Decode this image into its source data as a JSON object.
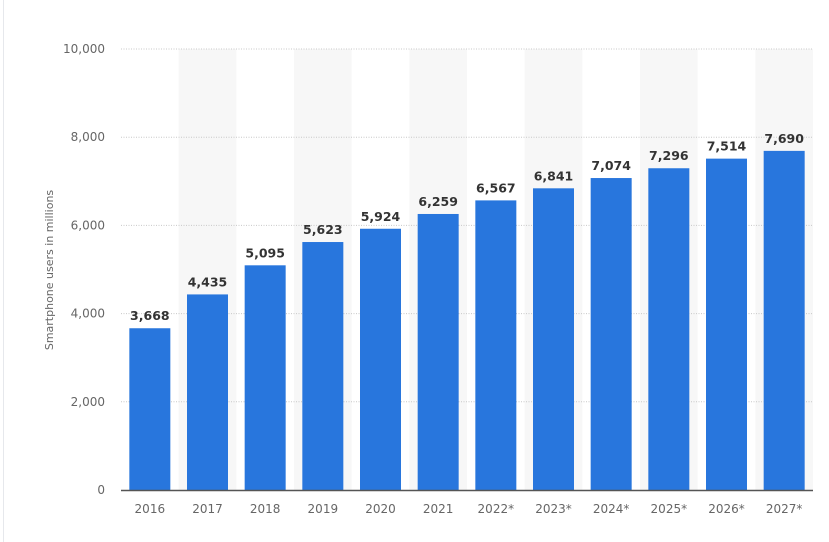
{
  "chart_data": {
    "type": "bar",
    "title": "",
    "xlabel": "",
    "ylabel": "Smartphone users in millions",
    "categories": [
      "2016",
      "2017",
      "2018",
      "2019",
      "2020",
      "2021",
      "2022*",
      "2023*",
      "2024*",
      "2025*",
      "2026*",
      "2027*"
    ],
    "values": [
      3668,
      4435,
      5095,
      5623,
      5924,
      6259,
      6567,
      6841,
      7074,
      7296,
      7514,
      7690
    ],
    "value_labels": [
      "3,668",
      "4,435",
      "5,095",
      "5,623",
      "5,924",
      "6,259",
      "6,567",
      "6,841",
      "7,074",
      "7,296",
      "7,514",
      "7,690"
    ],
    "ylim": [
      0,
      10000
    ],
    "yticks": [
      0,
      2000,
      4000,
      6000,
      8000,
      10000
    ],
    "ytick_labels": [
      "0",
      "2,000",
      "4,000",
      "6,000",
      "8,000",
      "10,000"
    ],
    "grid": true,
    "bar_color": "#2876dd",
    "band_color": "#f7f7f7"
  }
}
